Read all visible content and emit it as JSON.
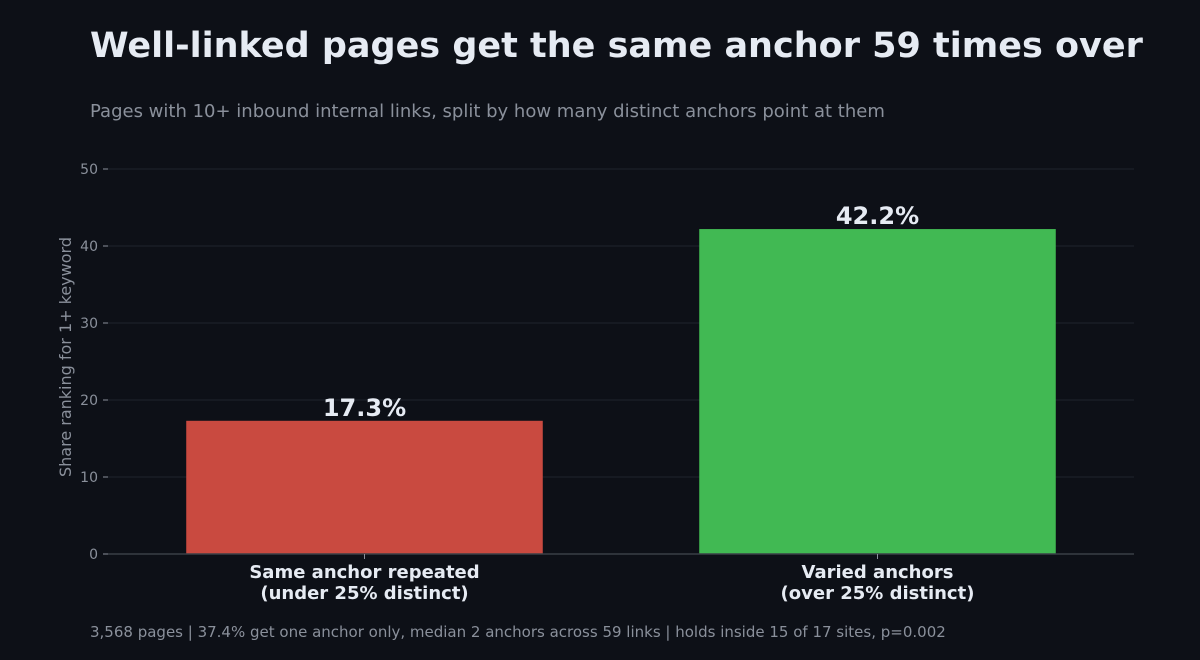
{
  "chart_data": {
    "type": "bar",
    "title": "Well-linked pages get the same anchor 59 times over",
    "subtitle": "Pages with 10+ inbound internal links, split by how many distinct anchors point at them",
    "ylabel": "Share ranking for 1+ keyword",
    "xlabel": "",
    "ylim": [
      0,
      50
    ],
    "yticks": [
      0,
      10,
      20,
      30,
      40,
      50
    ],
    "grid": true,
    "categories": [
      [
        "Same anchor repeated",
        "(under 25% distinct)"
      ],
      [
        "Varied anchors",
        "(over 25% distinct)"
      ]
    ],
    "values": [
      17.3,
      42.2
    ],
    "data_labels": [
      "17.3%",
      "42.2%"
    ],
    "colors": [
      "#c94a40",
      "#41b953"
    ],
    "footnote": "3,568 pages | 37.4% get one anchor only, median 2 anchors across 59 links | holds inside 15 of 17 sites, p=0.002"
  },
  "theme": {
    "background": "#0d1017",
    "text": "#e6ebf3",
    "muted": "#8a909b",
    "grid": "#1f242c",
    "axis": "#3a3f47"
  }
}
